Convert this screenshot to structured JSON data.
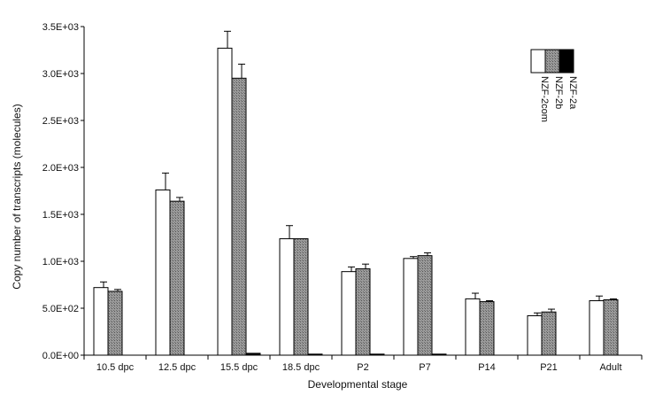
{
  "chart_data": {
    "type": "bar",
    "categories": [
      "10.5 dpc",
      "12.5 dpc",
      "15.5 dpc",
      "18.5 dpc",
      "P2",
      "P7",
      "P14",
      "P21",
      "Adult"
    ],
    "series": [
      {
        "name": "NZF-2com",
        "color": "#ffffff",
        "values": [
          720,
          1760,
          3270,
          1240,
          890,
          1030,
          600,
          420,
          580
        ],
        "errors": [
          60,
          180,
          180,
          140,
          50,
          20,
          60,
          30,
          50
        ]
      },
      {
        "name": "NZF-2b",
        "color": "#8a8a8a",
        "values": [
          680,
          1640,
          2950,
          1240,
          920,
          1060,
          570,
          460,
          590
        ],
        "errors": [
          20,
          40,
          150,
          0,
          50,
          30,
          10,
          30,
          10
        ]
      },
      {
        "name": "NZF-2a",
        "color": "#000000",
        "values": [
          0,
          0,
          20,
          10,
          10,
          10,
          0,
          0,
          0
        ],
        "errors": [
          0,
          0,
          0,
          0,
          0,
          0,
          0,
          0,
          0
        ]
      }
    ],
    "xlabel": "Developmental stage",
    "ylabel": "Copy number of transcripts (molecules)",
    "ylim": [
      0,
      3500
    ],
    "yticks": [
      {
        "value": 0,
        "label": "0.0E+00"
      },
      {
        "value": 500,
        "label": "5.0E+02"
      },
      {
        "value": 1000,
        "label": "1.0E+03"
      },
      {
        "value": 1500,
        "label": "1.5E+03"
      },
      {
        "value": 2000,
        "label": "2.0E+03"
      },
      {
        "value": 2500,
        "label": "2.5E+03"
      },
      {
        "value": 3000,
        "label": "3.0E+03"
      },
      {
        "value": 3500,
        "label": "3.5E+03"
      }
    ],
    "grid": false,
    "legend_position": "top-right"
  }
}
